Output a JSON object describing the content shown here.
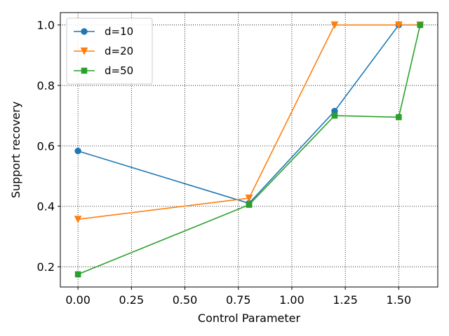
{
  "chart_data": {
    "type": "line",
    "xlabel": "Control Parameter",
    "ylabel": "Support recovery",
    "xlim": [
      -0.0825,
      1.6825
    ],
    "ylim": [
      0.133,
      1.041
    ],
    "xticks": [
      "0.00",
      "0.25",
      "0.50",
      "0.75",
      "1.00",
      "1.25",
      "1.50"
    ],
    "xtick_values": [
      0.0,
      0.25,
      0.5,
      0.75,
      1.0,
      1.25,
      1.5
    ],
    "yticks": [
      "0.2",
      "0.4",
      "0.6",
      "0.8",
      "1.0"
    ],
    "ytick_values": [
      0.2,
      0.4,
      0.6,
      0.8,
      1.0
    ],
    "grid": true,
    "grid_style": "dotted",
    "legend_position": "top-left",
    "x": [
      0.0,
      0.8,
      1.2,
      1.5,
      1.6
    ],
    "series": [
      {
        "name": "d=10",
        "color": "#1f77b4",
        "marker": "circle",
        "values": [
          0.583,
          0.41,
          0.715,
          1.0,
          1.0
        ]
      },
      {
        "name": "d=20",
        "color": "#ff7f0e",
        "marker": "triangle-down",
        "values": [
          0.357,
          0.427,
          1.0,
          1.0,
          1.0
        ]
      },
      {
        "name": "d=50",
        "color": "#2ca02c",
        "marker": "square",
        "values": [
          0.175,
          0.405,
          0.7,
          0.695,
          1.0
        ]
      }
    ]
  }
}
